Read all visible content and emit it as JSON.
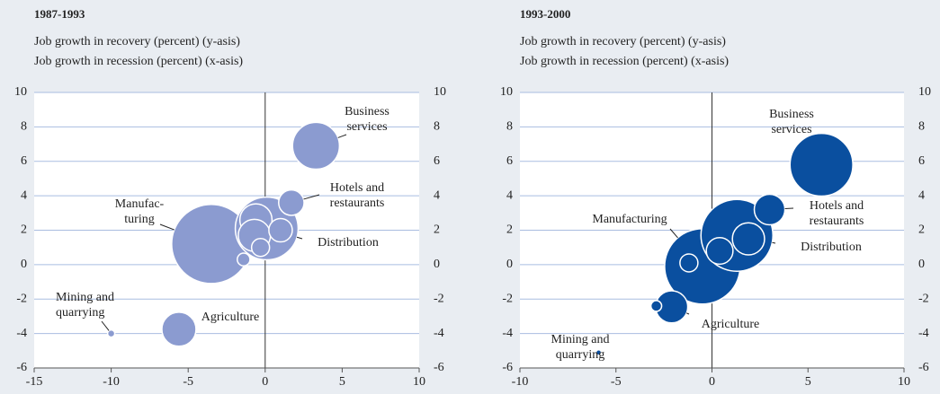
{
  "chart_data": [
    {
      "type": "bubble",
      "title": "1987-1993",
      "y_axis_label": "Job growth in recovery (percent) (y-asis)",
      "x_axis_label": "Job growth in recession (percent) (x-asis)",
      "color": "#8b9bd0",
      "x": [
        -3.5,
        0.1,
        -0.6,
        -0.7,
        1.0,
        -0.3,
        -1.4,
        3.3,
        1.7,
        -5.6,
        -10
      ],
      "y": [
        1.2,
        2.1,
        2.6,
        1.7,
        2.0,
        1.0,
        0.3,
        6.9,
        3.6,
        -3.75,
        -4
      ],
      "sizes": [
        194,
        122,
        32,
        32,
        17,
        10,
        5,
        68,
        20,
        36,
        1.6
      ],
      "labels": [
        [
          "Manufac-",
          "turing"
        ],
        [
          "Distribution"
        ],
        null,
        null,
        null,
        null,
        null,
        [
          "Business",
          "services"
        ],
        [
          "Hotels and",
          "restaurants"
        ],
        [
          "Agriculture"
        ],
        [
          "Mining and",
          "quarrying"
        ]
      ],
      "xlim": [
        -15,
        10
      ],
      "xticks": [
        -15,
        -10,
        -5,
        0,
        5,
        10
      ],
      "ylim": [
        -6,
        10
      ],
      "yticks": [
        -6,
        -4,
        -2,
        0,
        2,
        4,
        6,
        8,
        10
      ],
      "grid": true
    },
    {
      "type": "bubble",
      "title": "1993-2000",
      "y_axis_label": "Job growth in recovery (percent) (y-asis)",
      "x_axis_label": "Job growth in recession (percent) (x-asis)",
      "color": "#0a4f9f",
      "x": [
        -0.5,
        1.3,
        1.9,
        0.4,
        -1.2,
        5.7,
        3.0,
        -2.1,
        -2.9,
        -5.9
      ],
      "y": [
        -0.1,
        1.7,
        1.5,
        0.8,
        0.1,
        5.8,
        3.2,
        -2.45,
        -2.4,
        -5.1
      ],
      "sizes": [
        176,
        160,
        32,
        22,
        10,
        122,
        29,
        32,
        3.6,
        0.9
      ],
      "labels": [
        [
          "Manufacturing"
        ],
        [
          "Distribution"
        ],
        null,
        null,
        null,
        [
          "Business",
          "services"
        ],
        [
          "Hotels and",
          "restaurants"
        ],
        [
          "Agriculture"
        ],
        null,
        [
          "Mining and",
          "quarrying"
        ]
      ],
      "xlim": [
        -10,
        10
      ],
      "xticks": [
        -10,
        -5,
        0,
        5,
        10
      ],
      "ylim": [
        -6,
        10
      ],
      "yticks": [
        -6,
        -4,
        -2,
        0,
        2,
        4,
        6,
        8,
        10
      ],
      "grid": true
    }
  ]
}
